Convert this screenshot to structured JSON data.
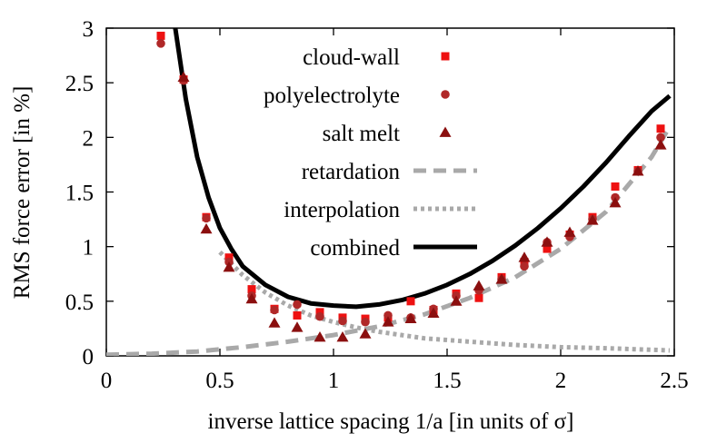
{
  "chart_data": {
    "type": "scatter",
    "xlabel": "inverse lattice spacing 1/a [in units of σ]",
    "ylabel": "RMS force error [in %]",
    "xlim": [
      0,
      2.5
    ],
    "ylim": [
      0,
      3
    ],
    "x_ticks": [
      "0",
      "0.5",
      "1",
      "1.5",
      "2",
      "2.5"
    ],
    "y_ticks": [
      "0",
      "0.5",
      "1",
      "1.5",
      "2",
      "2.5",
      "3"
    ],
    "legend_position": "top-center",
    "series": [
      {
        "name": "cloud-wall",
        "kind": "points",
        "marker": "square",
        "color": "#ee1111",
        "points": [
          [
            0.24,
            2.93
          ],
          [
            0.34,
            2.53
          ],
          [
            0.44,
            1.27
          ],
          [
            0.54,
            0.9
          ],
          [
            0.64,
            0.61
          ],
          [
            0.74,
            0.43
          ],
          [
            0.84,
            0.37
          ],
          [
            0.94,
            0.4
          ],
          [
            1.04,
            0.35
          ],
          [
            1.14,
            0.34
          ],
          [
            1.24,
            0.35
          ],
          [
            1.34,
            0.5
          ],
          [
            1.44,
            0.42
          ],
          [
            1.54,
            0.57
          ],
          [
            1.64,
            0.53
          ],
          [
            1.74,
            0.72
          ],
          [
            1.84,
            0.86
          ],
          [
            1.94,
            0.98
          ],
          [
            2.04,
            1.11
          ],
          [
            2.14,
            1.27
          ],
          [
            2.24,
            1.55
          ],
          [
            2.34,
            1.7
          ],
          [
            2.44,
            2.08
          ]
        ]
      },
      {
        "name": "polyelectrolyte",
        "kind": "points",
        "marker": "circle",
        "color": "#b02828",
        "points": [
          [
            0.24,
            2.86
          ],
          [
            0.34,
            2.52
          ],
          [
            0.44,
            1.26
          ],
          [
            0.54,
            0.86
          ],
          [
            0.64,
            0.55
          ],
          [
            0.74,
            0.42
          ],
          [
            0.84,
            0.47
          ],
          [
            0.94,
            0.36
          ],
          [
            1.04,
            0.32
          ],
          [
            1.14,
            0.31
          ],
          [
            1.24,
            0.37
          ],
          [
            1.34,
            0.35
          ],
          [
            1.44,
            0.43
          ],
          [
            1.54,
            0.55
          ],
          [
            1.64,
            0.6
          ],
          [
            1.74,
            0.7
          ],
          [
            1.84,
            0.82
          ],
          [
            1.94,
            1.04
          ],
          [
            2.04,
            1.09
          ],
          [
            2.14,
            1.25
          ],
          [
            2.24,
            1.45
          ],
          [
            2.34,
            1.69
          ],
          [
            2.44,
            2.0
          ]
        ]
      },
      {
        "name": "salt melt",
        "kind": "points",
        "marker": "triangle",
        "color": "#8b0f0f",
        "points": [
          [
            0.34,
            2.55
          ],
          [
            0.44,
            1.16
          ],
          [
            0.54,
            0.81
          ],
          [
            0.64,
            0.52
          ],
          [
            0.74,
            0.3
          ],
          [
            0.84,
            0.26
          ],
          [
            0.94,
            0.17
          ],
          [
            1.04,
            0.17
          ],
          [
            1.14,
            0.2
          ],
          [
            1.24,
            0.31
          ],
          [
            1.34,
            0.34
          ],
          [
            1.44,
            0.39
          ],
          [
            1.54,
            0.5
          ],
          [
            1.64,
            0.64
          ],
          [
            1.74,
            0.7
          ],
          [
            1.84,
            0.9
          ],
          [
            1.94,
            1.04
          ],
          [
            2.04,
            1.13
          ],
          [
            2.14,
            1.24
          ],
          [
            2.24,
            1.4
          ],
          [
            2.34,
            1.69
          ],
          [
            2.44,
            1.93
          ]
        ]
      },
      {
        "name": "retardation",
        "kind": "line",
        "dash": "dashed",
        "color": "#a9a9a9",
        "points": [
          [
            0,
            0.01
          ],
          [
            0.2,
            0.02
          ],
          [
            0.4,
            0.04
          ],
          [
            0.6,
            0.08
          ],
          [
            0.8,
            0.13
          ],
          [
            1.0,
            0.19
          ],
          [
            1.2,
            0.27
          ],
          [
            1.4,
            0.38
          ],
          [
            1.6,
            0.53
          ],
          [
            1.8,
            0.72
          ],
          [
            2.0,
            0.98
          ],
          [
            2.2,
            1.32
          ],
          [
            2.4,
            1.82
          ],
          [
            2.48,
            2.1
          ]
        ]
      },
      {
        "name": "interpolation",
        "kind": "line",
        "dash": "dotted",
        "color": "#a9a9a9",
        "points": [
          [
            0.5,
            0.95
          ],
          [
            0.6,
            0.74
          ],
          [
            0.7,
            0.58
          ],
          [
            0.8,
            0.46
          ],
          [
            0.9,
            0.37
          ],
          [
            1.0,
            0.31
          ],
          [
            1.1,
            0.26
          ],
          [
            1.2,
            0.22
          ],
          [
            1.3,
            0.19
          ],
          [
            1.4,
            0.16
          ],
          [
            1.6,
            0.13
          ],
          [
            1.8,
            0.1
          ],
          [
            2.0,
            0.08
          ],
          [
            2.2,
            0.07
          ],
          [
            2.48,
            0.05
          ]
        ]
      },
      {
        "name": "combined",
        "kind": "line",
        "dash": "solid",
        "color": "#000000",
        "points": [
          [
            0.3,
            3.05
          ],
          [
            0.35,
            2.35
          ],
          [
            0.4,
            1.82
          ],
          [
            0.45,
            1.45
          ],
          [
            0.5,
            1.17
          ],
          [
            0.55,
            0.98
          ],
          [
            0.6,
            0.82
          ],
          [
            0.7,
            0.65
          ],
          [
            0.8,
            0.54
          ],
          [
            0.9,
            0.48
          ],
          [
            1.0,
            0.46
          ],
          [
            1.1,
            0.45
          ],
          [
            1.2,
            0.47
          ],
          [
            1.3,
            0.51
          ],
          [
            1.4,
            0.57
          ],
          [
            1.5,
            0.65
          ],
          [
            1.6,
            0.75
          ],
          [
            1.7,
            0.87
          ],
          [
            1.8,
            1.01
          ],
          [
            1.9,
            1.17
          ],
          [
            2.0,
            1.35
          ],
          [
            2.1,
            1.55
          ],
          [
            2.2,
            1.77
          ],
          [
            2.3,
            2.01
          ],
          [
            2.4,
            2.24
          ],
          [
            2.48,
            2.38
          ]
        ]
      }
    ]
  }
}
